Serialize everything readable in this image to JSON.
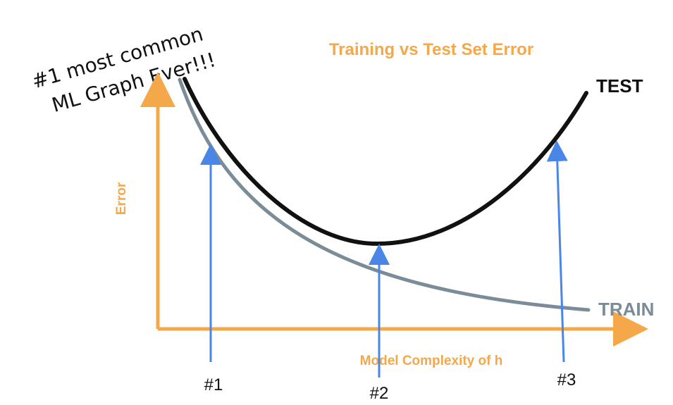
{
  "annotation": {
    "line1": "#1 most common",
    "line2": "ML Graph Ever!!!"
  },
  "title": "Training vs Test Set Error",
  "axes": {
    "y_label": "Error",
    "x_label": "Model Complexity of h"
  },
  "curves": {
    "test_label": "TEST",
    "train_label": "TRAIN"
  },
  "markers": [
    "#1",
    "#2",
    "#3"
  ],
  "colors": {
    "axis": "#F5A84A",
    "test": "#111111",
    "train": "#7A8C98",
    "marker_arrow": "#4A86E8",
    "text": "#111111"
  }
}
